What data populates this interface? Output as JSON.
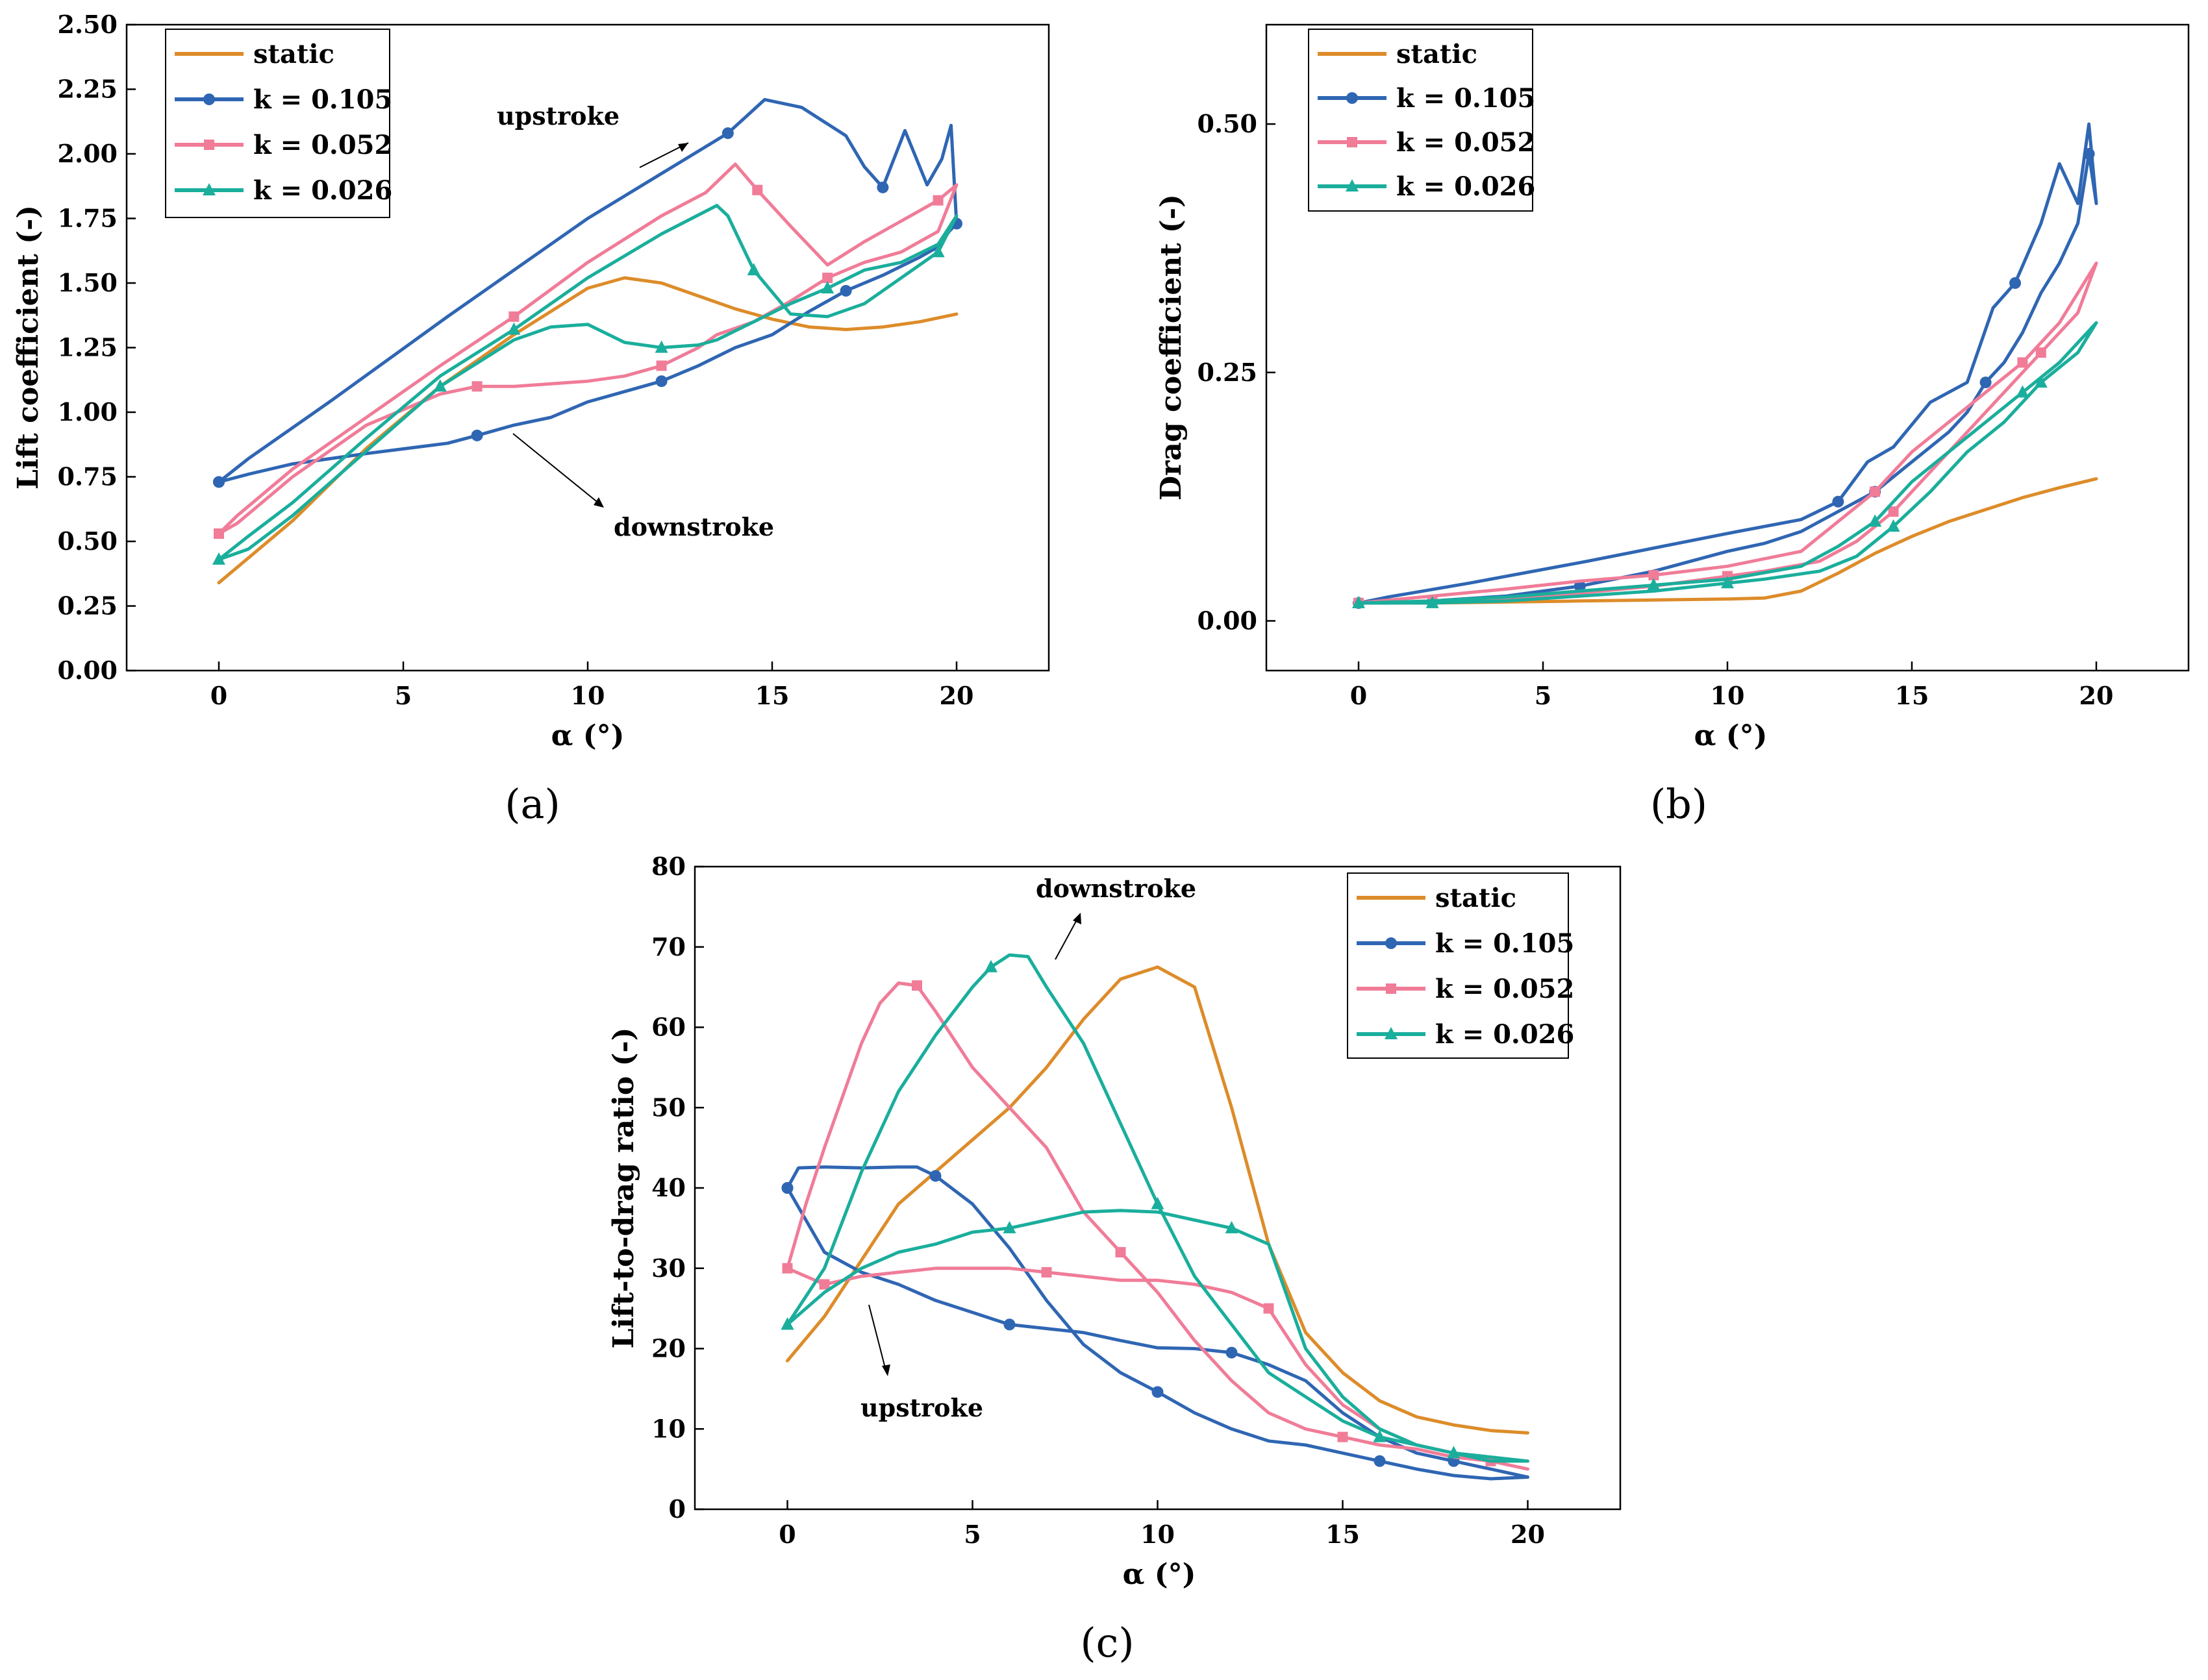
{
  "colors": {
    "static": "#dd8c2a",
    "k_0105": "#2f66b3",
    "k_0052": "#f07c98",
    "k_0026": "#1aae9c"
  },
  "chart_data": [
    {
      "id": "a",
      "type": "line",
      "panel_label": "(a)",
      "xlabel": "α (°)",
      "ylabel": "Lift coefficient (-)",
      "xlim": [
        -2.5,
        22.5
      ],
      "ylim": [
        0,
        2.5
      ],
      "xticks": [
        "0",
        "5",
        "10",
        "15",
        "20"
      ],
      "yticks": [
        "0.00",
        "0.25",
        "0.50",
        "0.75",
        "1.00",
        "1.25",
        "1.50",
        "1.75",
        "2.00",
        "2.25",
        "2.50"
      ],
      "legend": [
        "static",
        "k = 0.105",
        "k = 0.052",
        "k = 0.026"
      ],
      "annotations": [
        "upstroke",
        "downstroke"
      ],
      "series": [
        {
          "name": "static",
          "color": "static",
          "marker": "none",
          "x": [
            0,
            2,
            4,
            6,
            8,
            10,
            11,
            12,
            13,
            14,
            15,
            16,
            17,
            18,
            19,
            20
          ],
          "y": [
            0.34,
            0.58,
            0.86,
            1.1,
            1.3,
            1.48,
            1.52,
            1.5,
            1.45,
            1.4,
            1.36,
            1.33,
            1.32,
            1.33,
            1.35,
            1.38
          ]
        },
        {
          "name": "k = 0.105",
          "color": "k_0105",
          "marker": "circle",
          "x": [
            0,
            0.8,
            3,
            6.2,
            10,
            13.8,
            14.8,
            15.8,
            17,
            17.5,
            18,
            18.6,
            19.2,
            19.6,
            19.85,
            20,
            19.8,
            19.5,
            19,
            18,
            17,
            16,
            15,
            14,
            13,
            12,
            11,
            10,
            9,
            8,
            7,
            6.2,
            4,
            2,
            0.8,
            0
          ],
          "y": [
            0.73,
            0.82,
            1.04,
            1.37,
            1.75,
            2.08,
            2.21,
            2.18,
            2.07,
            1.95,
            1.87,
            2.09,
            1.88,
            1.98,
            2.11,
            1.73,
            1.7,
            1.64,
            1.6,
            1.53,
            1.47,
            1.39,
            1.3,
            1.25,
            1.18,
            1.12,
            1.08,
            1.04,
            0.98,
            0.95,
            0.91,
            0.88,
            0.84,
            0.8,
            0.76,
            0.73
          ]
        },
        {
          "name": "k = 0.052",
          "color": "k_0052",
          "marker": "square",
          "x": [
            0,
            0.5,
            2,
            4,
            6,
            8,
            10,
            12,
            13.2,
            14,
            14.6,
            15.5,
            16.5,
            17.5,
            18.5,
            19.5,
            20,
            19.5,
            18.5,
            17.5,
            16.5,
            15.5,
            14.5,
            13.5,
            13,
            12,
            11,
            10,
            9,
            8,
            7,
            6,
            4,
            2,
            0.5,
            0
          ],
          "y": [
            0.53,
            0.6,
            0.78,
            0.98,
            1.18,
            1.37,
            1.58,
            1.76,
            1.85,
            1.96,
            1.86,
            1.72,
            1.57,
            1.66,
            1.74,
            1.82,
            1.88,
            1.7,
            1.62,
            1.58,
            1.52,
            1.43,
            1.35,
            1.3,
            1.25,
            1.18,
            1.14,
            1.12,
            1.11,
            1.1,
            1.1,
            1.07,
            0.95,
            0.75,
            0.57,
            0.53
          ]
        },
        {
          "name": "k = 0.026",
          "color": "k_0026",
          "marker": "triangle",
          "x": [
            0,
            0.8,
            2,
            4,
            6,
            8,
            10,
            12,
            13.5,
            13.8,
            14.5,
            15.5,
            16.5,
            17.5,
            18.5,
            19.5,
            20,
            19.5,
            18.5,
            17.5,
            16.5,
            15.5,
            14.5,
            13.5,
            13,
            12,
            11,
            10,
            9,
            8,
            6,
            4,
            2,
            0.8,
            0
          ],
          "y": [
            0.43,
            0.52,
            0.65,
            0.9,
            1.14,
            1.32,
            1.52,
            1.69,
            1.8,
            1.76,
            1.55,
            1.38,
            1.37,
            1.42,
            1.52,
            1.62,
            1.76,
            1.65,
            1.58,
            1.55,
            1.48,
            1.42,
            1.35,
            1.28,
            1.26,
            1.25,
            1.27,
            1.34,
            1.33,
            1.28,
            1.1,
            0.85,
            0.6,
            0.47,
            0.43
          ]
        }
      ]
    },
    {
      "id": "b",
      "type": "line",
      "panel_label": "(b)",
      "xlabel": "α (°)",
      "ylabel": "Drag coefficient (-)",
      "xlim": [
        -2.5,
        22.5
      ],
      "ylim": [
        -0.05,
        0.6
      ],
      "xticks": [
        "0",
        "5",
        "10",
        "15",
        "20"
      ],
      "yticks": [
        "0.00",
        "0.25",
        "0.50"
      ],
      "legend": [
        "static",
        "k = 0.105",
        "k = 0.052",
        "k = 0.026"
      ],
      "annotations": [],
      "series": [
        {
          "name": "static",
          "color": "static",
          "marker": "none",
          "x": [
            0,
            2,
            4,
            6,
            8,
            10,
            11,
            12,
            13,
            14,
            15,
            16,
            17,
            18,
            19,
            20
          ],
          "y": [
            0.018,
            0.018,
            0.019,
            0.02,
            0.021,
            0.022,
            0.023,
            0.03,
            0.048,
            0.068,
            0.085,
            0.1,
            0.112,
            0.124,
            0.134,
            0.143
          ]
        },
        {
          "name": "k = 0.105",
          "color": "k_0105",
          "marker": "circle",
          "x": [
            0,
            0.8,
            3,
            6.2,
            10,
            12,
            13,
            13.8,
            14.5,
            15.5,
            16.5,
            17.2,
            17.8,
            18.5,
            19,
            19.5,
            19.8,
            20,
            19.8,
            19.5,
            19,
            18.5,
            18,
            17.5,
            17,
            16.5,
            16,
            15.5,
            15,
            14.5,
            14,
            13,
            12,
            11,
            10,
            8,
            6,
            4,
            2,
            0.8,
            0
          ],
          "y": [
            0.018,
            0.024,
            0.038,
            0.06,
            0.088,
            0.102,
            0.12,
            0.16,
            0.175,
            0.22,
            0.24,
            0.315,
            0.34,
            0.4,
            0.46,
            0.42,
            0.5,
            0.42,
            0.47,
            0.4,
            0.36,
            0.33,
            0.29,
            0.26,
            0.24,
            0.21,
            0.19,
            0.175,
            0.16,
            0.145,
            0.13,
            0.11,
            0.09,
            0.078,
            0.07,
            0.05,
            0.035,
            0.025,
            0.02,
            0.018,
            0.018
          ]
        },
        {
          "name": "k = 0.052",
          "color": "k_0052",
          "marker": "square",
          "x": [
            0,
            2,
            4,
            6,
            8,
            10,
            12,
            13,
            14,
            15,
            16,
            17,
            18,
            19,
            20,
            19.5,
            18.5,
            17.5,
            16.5,
            15.5,
            14.5,
            13.5,
            12.5,
            11,
            10,
            8,
            6,
            4,
            2,
            0
          ],
          "y": [
            0.018,
            0.025,
            0.032,
            0.04,
            0.046,
            0.055,
            0.07,
            0.1,
            0.13,
            0.17,
            0.2,
            0.23,
            0.26,
            0.3,
            0.36,
            0.31,
            0.27,
            0.23,
            0.19,
            0.15,
            0.11,
            0.08,
            0.06,
            0.05,
            0.045,
            0.035,
            0.028,
            0.022,
            0.019,
            0.018
          ]
        },
        {
          "name": "k = 0.026",
          "color": "k_0026",
          "marker": "triangle",
          "x": [
            0,
            2,
            4,
            6,
            8,
            10,
            12,
            13,
            14,
            15,
            16,
            17,
            18,
            19,
            20,
            19.5,
            18.5,
            17.5,
            16.5,
            15.5,
            14.5,
            13.5,
            12.5,
            11,
            10,
            8,
            6,
            4,
            2,
            0
          ],
          "y": [
            0.018,
            0.02,
            0.024,
            0.03,
            0.036,
            0.042,
            0.055,
            0.075,
            0.1,
            0.14,
            0.17,
            0.2,
            0.23,
            0.26,
            0.3,
            0.27,
            0.24,
            0.2,
            0.17,
            0.13,
            0.095,
            0.065,
            0.05,
            0.042,
            0.038,
            0.03,
            0.025,
            0.02,
            0.018,
            0.018
          ]
        }
      ]
    },
    {
      "id": "c",
      "type": "line",
      "panel_label": "(c)",
      "xlabel": "α (°)",
      "ylabel": "Lift-to-drag ratio (-)",
      "xlim": [
        -2.5,
        22.5
      ],
      "ylim": [
        0,
        80
      ],
      "xticks": [
        "0",
        "5",
        "10",
        "15",
        "20"
      ],
      "yticks": [
        "0",
        "10",
        "20",
        "30",
        "40",
        "50",
        "60",
        "70",
        "80"
      ],
      "legend": [
        "static",
        "k = 0.105",
        "k = 0.052",
        "k = 0.026"
      ],
      "annotations": [
        "downstroke",
        "upstroke"
      ],
      "series": [
        {
          "name": "static",
          "color": "static",
          "marker": "none",
          "x": [
            0,
            1,
            2,
            3,
            4,
            5,
            6,
            7,
            8,
            9,
            10,
            11,
            12,
            13,
            14,
            15,
            16,
            17,
            18,
            19,
            20
          ],
          "y": [
            18.5,
            24,
            31,
            38,
            42,
            46,
            50,
            55,
            61,
            66,
            67.5,
            65,
            50,
            33,
            22,
            17,
            13.5,
            11.5,
            10.5,
            9.8,
            9.5
          ]
        },
        {
          "name": "k = 0.105",
          "color": "k_0105",
          "marker": "circle",
          "x": [
            0,
            0.3,
            1,
            2,
            3,
            3.5,
            4,
            5,
            6,
            7,
            8,
            9,
            10,
            11,
            12,
            13,
            14,
            15,
            16,
            17,
            18,
            19,
            20,
            19,
            18,
            17,
            16,
            15,
            14,
            13,
            12,
            11,
            10,
            9,
            8,
            7,
            6,
            5,
            4,
            3,
            2,
            1,
            0
          ],
          "y": [
            40,
            42.5,
            42.6,
            42.5,
            42.6,
            42.6,
            41.5,
            38,
            32.5,
            26,
            20.5,
            17,
            14.6,
            12,
            10,
            8.5,
            8,
            7,
            6,
            5,
            4.2,
            3.8,
            4,
            5,
            6,
            7,
            9,
            12,
            16,
            18,
            19.5,
            20,
            20.1,
            21,
            22,
            22.5,
            23,
            24.5,
            26,
            28,
            29.5,
            32,
            40
          ]
        },
        {
          "name": "k = 0.052",
          "color": "k_0052",
          "marker": "square",
          "x": [
            0,
            0.5,
            1,
            2,
            2.5,
            3,
            3.5,
            4,
            5,
            6,
            7,
            8,
            9,
            10,
            11,
            12,
            13,
            14,
            15,
            16,
            17,
            18,
            19,
            20,
            19,
            18,
            17,
            16,
            15,
            14,
            13,
            12,
            11,
            10,
            9,
            8,
            7,
            6,
            5,
            4,
            3,
            2,
            1,
            0
          ],
          "y": [
            30,
            38,
            45,
            58,
            63,
            65.5,
            65.2,
            62,
            55,
            50,
            45,
            37,
            32,
            27,
            21,
            16,
            12,
            10,
            9,
            8,
            7.5,
            6.5,
            6,
            5,
            6,
            7,
            8,
            10,
            13,
            18,
            25,
            27,
            28,
            28.5,
            28.5,
            29,
            29.5,
            30,
            30,
            30,
            29.5,
            29,
            28,
            30
          ]
        },
        {
          "name": "k = 0.026",
          "color": "k_0026",
          "marker": "triangle",
          "x": [
            0,
            1,
            2,
            3,
            4,
            5,
            5.5,
            6,
            6.5,
            7,
            8,
            9,
            10,
            11,
            12,
            13,
            14,
            15,
            16,
            17,
            18,
            19,
            20,
            19,
            18,
            17,
            16,
            15,
            14,
            13,
            12,
            11,
            10,
            9,
            8,
            7,
            6,
            5,
            4,
            3,
            2,
            1,
            0
          ],
          "y": [
            23,
            30,
            42,
            52,
            59,
            65,
            67.5,
            69,
            68.8,
            65,
            58,
            48,
            38,
            29,
            23,
            17,
            14,
            11,
            9,
            8,
            7,
            6.5,
            6,
            6,
            7,
            8,
            10,
            14,
            20,
            33,
            35,
            36,
            37,
            37.2,
            37,
            36,
            35,
            34.5,
            33,
            32,
            30,
            27,
            23
          ]
        }
      ]
    }
  ]
}
